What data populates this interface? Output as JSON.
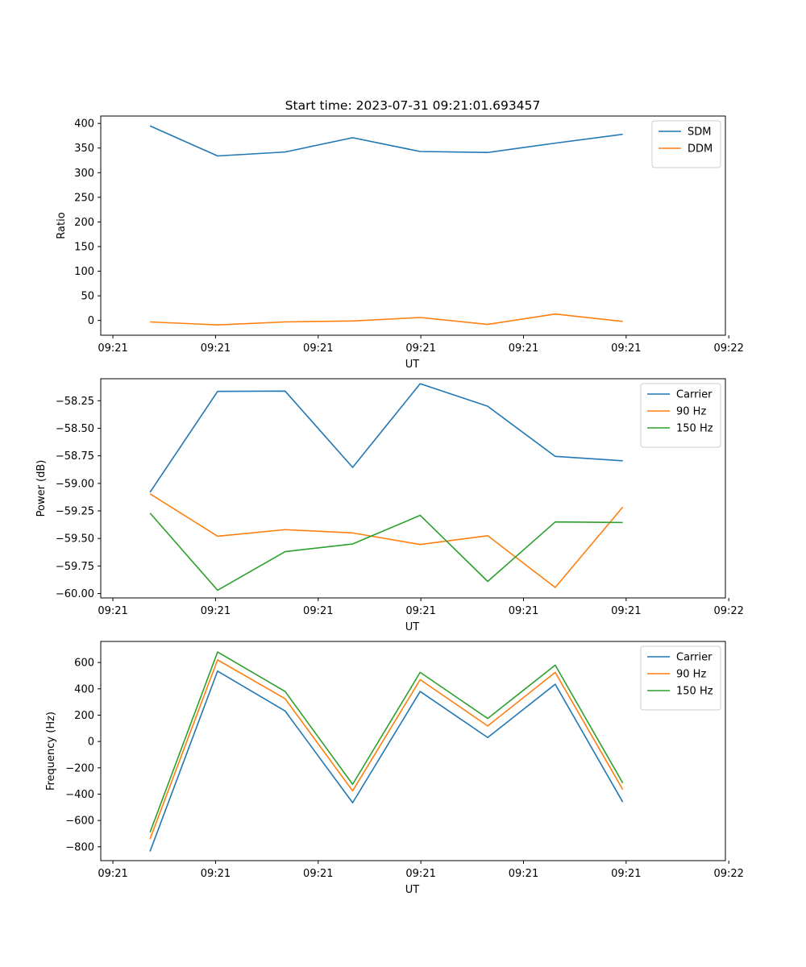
{
  "figure_title": "Start time: 2023-07-31 09:21:01.693457",
  "chart_data": [
    {
      "type": "line",
      "title": "Start time: 2023-07-31 09:21:01.693457",
      "xlabel": "UT",
      "ylabel": "Ratio",
      "x": [
        1,
        2,
        3,
        4,
        5,
        6,
        7,
        8
      ],
      "xlim": [
        0.27,
        9.52
      ],
      "xticks": [
        0.45,
        1.97,
        3.49,
        5.01,
        6.53,
        8.05,
        9.57
      ],
      "xtick_labels": [
        "09:21",
        "09:21",
        "09:21",
        "09:21",
        "09:21",
        "09:21",
        "09:22"
      ],
      "ylim": [
        -30,
        415
      ],
      "yticks": [
        0,
        50,
        100,
        150,
        200,
        250,
        300,
        350,
        400
      ],
      "ytick_labels": [
        "0",
        "50",
        "100",
        "150",
        "200",
        "250",
        "300",
        "350",
        "400"
      ],
      "legend_position": "top-right",
      "series": [
        {
          "name": "SDM",
          "color": "#1f77b4",
          "values": [
            395,
            334,
            342,
            371,
            343,
            341,
            360,
            378
          ]
        },
        {
          "name": "DDM",
          "color": "#ff7f0e",
          "values": [
            -3,
            -9,
            -3,
            -1,
            6,
            -8,
            13,
            -2
          ]
        }
      ]
    },
    {
      "type": "line",
      "xlabel": "UT",
      "ylabel": "Power (dB)",
      "x": [
        1,
        2,
        3,
        4,
        5,
        6,
        7,
        8
      ],
      "xlim": [
        0.27,
        9.52
      ],
      "xticks": [
        0.45,
        1.97,
        3.49,
        5.01,
        6.53,
        8.05,
        9.57
      ],
      "xtick_labels": [
        "09:21",
        "09:21",
        "09:21",
        "09:21",
        "09:21",
        "09:21",
        "09:22"
      ],
      "ylim": [
        -60.04,
        -58.05
      ],
      "yticks": [
        -60.0,
        -59.75,
        -59.5,
        -59.25,
        -59.0,
        -58.75,
        -58.5,
        -58.25
      ],
      "ytick_labels": [
        "−60.00",
        "−59.75",
        "−59.50",
        "−59.25",
        "−59.00",
        "−58.75",
        "−58.50",
        "−58.25"
      ],
      "legend_position": "top-right",
      "series": [
        {
          "name": "Carrier",
          "color": "#1f77b4",
          "values": [
            -59.08,
            -58.165,
            -58.162,
            -58.855,
            -58.095,
            -58.3,
            -58.755,
            -58.795
          ]
        },
        {
          "name": "90 Hz",
          "color": "#ff7f0e",
          "values": [
            -59.095,
            -59.48,
            -59.42,
            -59.45,
            -59.555,
            -59.475,
            -59.945,
            -59.215
          ]
        },
        {
          "name": "150 Hz",
          "color": "#2ca02c",
          "values": [
            -59.27,
            -59.97,
            -59.62,
            -59.55,
            -59.29,
            -59.89,
            -59.35,
            -59.355
          ]
        }
      ]
    },
    {
      "type": "line",
      "xlabel": "UT",
      "ylabel": "Frequency (Hz)",
      "x": [
        1,
        2,
        3,
        4,
        5,
        6,
        7,
        8
      ],
      "xlim": [
        0.27,
        9.52
      ],
      "xticks": [
        0.45,
        1.97,
        3.49,
        5.01,
        6.53,
        8.05,
        9.57
      ],
      "xtick_labels": [
        "09:21",
        "09:21",
        "09:21",
        "09:21",
        "09:21",
        "09:21",
        "09:22"
      ],
      "ylim": [
        -905,
        760
      ],
      "yticks": [
        -800,
        -600,
        -400,
        -200,
        0,
        200,
        400,
        600
      ],
      "ytick_labels": [
        "−800",
        "−600",
        "−400",
        "−200",
        "0",
        "200",
        "400",
        "600"
      ],
      "legend_position": "top-right",
      "series": [
        {
          "name": "Carrier",
          "color": "#1f77b4",
          "values": [
            -835,
            535,
            232,
            -465,
            380,
            30,
            435,
            -460
          ]
        },
        {
          "name": "90 Hz",
          "color": "#ff7f0e",
          "values": [
            -740,
            620,
            325,
            -375,
            470,
            118,
            525,
            -365
          ]
        },
        {
          "name": "150 Hz",
          "color": "#2ca02c",
          "values": [
            -690,
            680,
            380,
            -325,
            525,
            175,
            580,
            -315
          ]
        }
      ]
    }
  ]
}
